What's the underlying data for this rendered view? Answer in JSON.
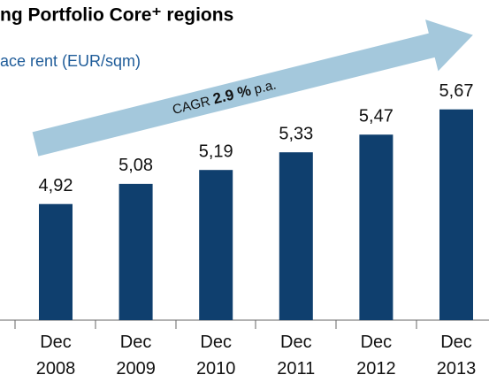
{
  "chart_data": {
    "type": "bar",
    "title": "ng Portfolio Core⁺ regions",
    "subtitle": "ace rent (EUR/sqm)",
    "annotation": {
      "prefix": "CAGR",
      "value": "2.9 %",
      "suffix": "p.a."
    },
    "categories": [
      "Dec 2008",
      "Dec 2009",
      "Dec 2010",
      "Dec 2011",
      "Dec 2012",
      "Dec 2013"
    ],
    "values": [
      4.92,
      5.08,
      5.19,
      5.33,
      5.47,
      5.67
    ],
    "value_labels": [
      "4,92",
      "5,08",
      "5,19",
      "5,33",
      "5,47",
      "5,67"
    ],
    "color": "#0f3f6e",
    "ylim": [
      4,
      6
    ]
  }
}
